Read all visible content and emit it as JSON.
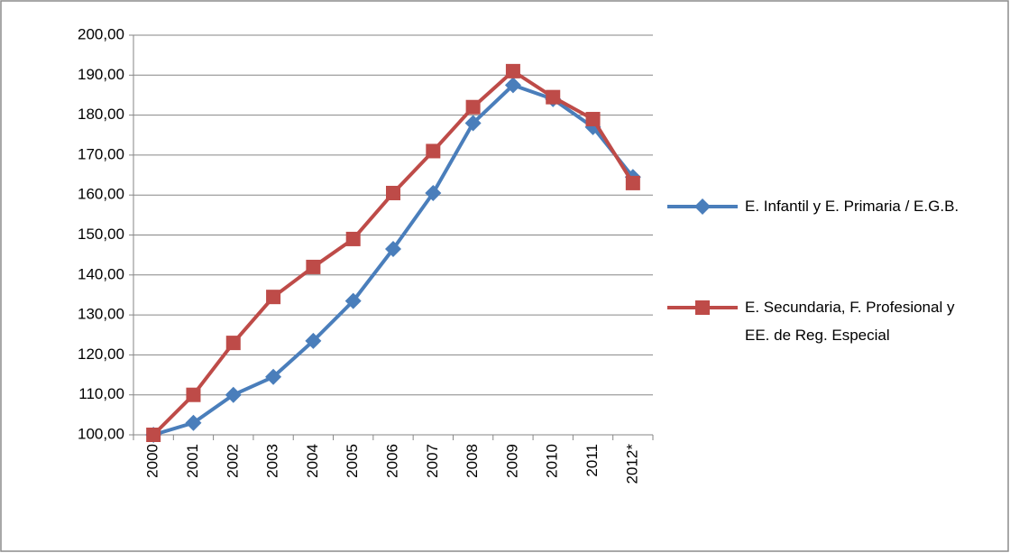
{
  "chart_data": {
    "type": "line",
    "categories": [
      "2000",
      "2001",
      "2002",
      "2003",
      "2004",
      "2005",
      "2006",
      "2007",
      "2008",
      "2009",
      "2010",
      "2011",
      "2012*"
    ],
    "series": [
      {
        "name": "E. Infantil y E. Primaria / E.G.B.",
        "color": "#4a7ebb",
        "marker": "diamond",
        "values": [
          100,
          103,
          110,
          114.5,
          123.5,
          133.5,
          146.5,
          160.5,
          178,
          187.5,
          184,
          177,
          164.5
        ]
      },
      {
        "name": "E. Secundaria, F. Profesional y  EE. de Reg. Especial",
        "color": "#be4b48",
        "marker": "square",
        "values": [
          100,
          110,
          123,
          134.5,
          142,
          149,
          160.5,
          171,
          182,
          191,
          184.5,
          179,
          163
        ]
      }
    ],
    "ylim": [
      100,
      200
    ],
    "yticks": [
      {
        "value": 100,
        "label": "100,00"
      },
      {
        "value": 110,
        "label": "110,00"
      },
      {
        "value": 120,
        "label": "120,00"
      },
      {
        "value": 130,
        "label": "130,00"
      },
      {
        "value": 140,
        "label": "140,00"
      },
      {
        "value": 150,
        "label": "150,00"
      },
      {
        "value": 160,
        "label": "160,00"
      },
      {
        "value": 170,
        "label": "170,00"
      },
      {
        "value": 180,
        "label": "180,00"
      },
      {
        "value": 190,
        "label": "190,00"
      },
      {
        "value": 200,
        "label": "200,00"
      }
    ],
    "grid": true,
    "legend": "right"
  }
}
